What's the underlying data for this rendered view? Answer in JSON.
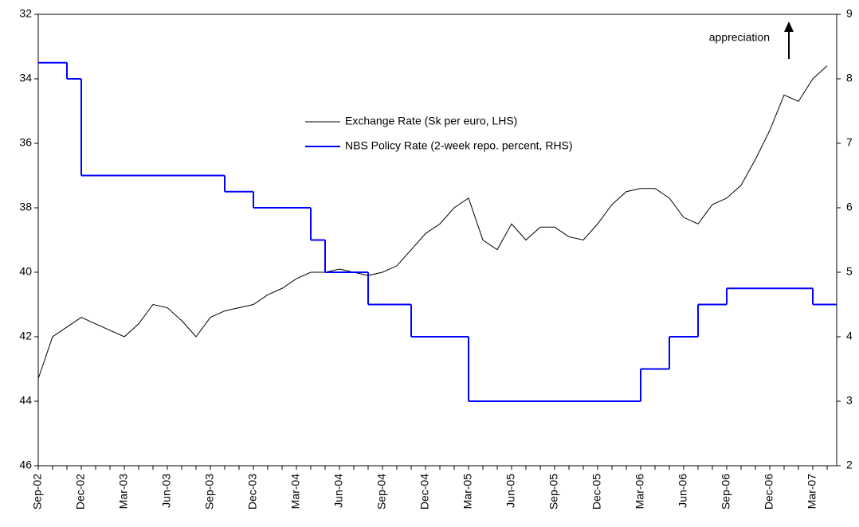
{
  "chart_data": {
    "type": "line",
    "categories": [
      "Sep-02",
      null,
      null,
      "Dec-02",
      null,
      null,
      "Mar-03",
      null,
      null,
      "Jun-03",
      null,
      null,
      "Sep-03",
      null,
      null,
      "Dec-03",
      null,
      null,
      "Mar-04",
      null,
      null,
      "Jun-04",
      null,
      null,
      "Sep-04",
      null,
      null,
      "Dec-04",
      null,
      null,
      "Mar-05",
      null,
      null,
      "Jun-05",
      null,
      null,
      "Sep-05",
      null,
      null,
      "Dec-05",
      null,
      null,
      "Mar-06",
      null,
      null,
      "Jun-06",
      null,
      null,
      "Sep-06",
      null,
      null,
      "Dec-06",
      null,
      null,
      "Mar-07",
      null
    ],
    "series": [
      {
        "name": "Exchange Rate (Sk per euro, LHS)",
        "color": "#000000",
        "values": [
          43.3,
          42.0,
          41.7,
          41.4,
          41.6,
          41.8,
          42.0,
          41.6,
          41.0,
          41.1,
          41.5,
          42.0,
          41.4,
          41.2,
          41.1,
          41.0,
          40.7,
          40.5,
          40.2,
          40.0,
          40.0,
          39.9,
          40.0,
          40.1,
          40.0,
          39.8,
          39.3,
          38.8,
          38.5,
          38.0,
          37.7,
          39.0,
          39.3,
          38.5,
          39.0,
          38.6,
          38.6,
          38.9,
          39.0,
          38.5,
          37.9,
          37.5,
          37.4,
          37.4,
          37.7,
          38.3,
          38.5,
          37.9,
          37.7,
          37.3,
          36.5,
          35.6,
          34.5,
          34.7,
          34.0,
          33.6
        ]
      },
      {
        "name": "NBS Policy Rate (2-week repo. percent, RHS)",
        "color": "#0000ff",
        "axis": "y2",
        "step": true,
        "values": [
          8.25,
          8.25,
          8.0,
          6.5,
          6.5,
          6.5,
          6.5,
          6.5,
          6.5,
          6.5,
          6.5,
          6.5,
          6.5,
          6.25,
          6.25,
          6.0,
          6.0,
          6.0,
          6.0,
          5.5,
          5.0,
          5.0,
          5.0,
          4.5,
          4.5,
          4.5,
          4.0,
          4.0,
          4.0,
          4.0,
          3.0,
          3.0,
          3.0,
          3.0,
          3.0,
          3.0,
          3.0,
          3.0,
          3.0,
          3.0,
          3.0,
          3.0,
          3.5,
          3.5,
          4.0,
          4.0,
          4.5,
          4.5,
          4.75,
          4.75,
          4.75,
          4.75,
          4.75,
          4.75,
          4.5,
          4.5
        ]
      }
    ],
    "ylim": [
      46,
      32
    ],
    "yticks": [
      32,
      34,
      36,
      38,
      40,
      42,
      44,
      46
    ],
    "y2lim": [
      2,
      9
    ],
    "y2ticks": [
      2,
      3,
      4,
      5,
      6,
      7,
      8,
      9
    ],
    "annotation": "appreciation"
  }
}
